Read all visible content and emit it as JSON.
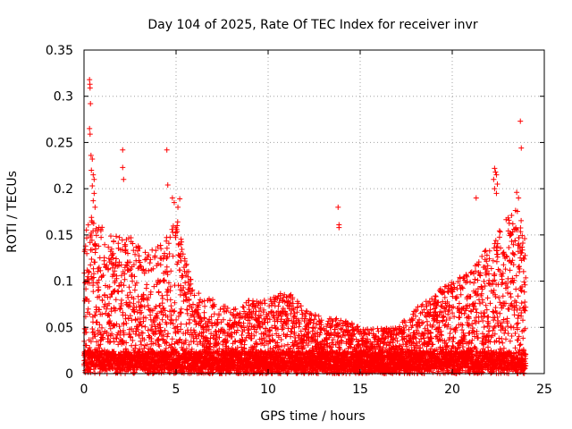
{
  "chart_data": {
    "type": "scatter",
    "title": "Day 104 of 2025, Rate Of TEC Index for receiver invr",
    "xlabel": "GPS time / hours",
    "ylabel": "ROTI / TECUs",
    "xlim": [
      0,
      25
    ],
    "ylim": [
      0,
      0.35
    ],
    "xticks": [
      "0",
      "5",
      "10",
      "15",
      "20",
      "25"
    ],
    "yticks": [
      "0",
      "0.05",
      "0.1",
      "0.15",
      "0.2",
      "0.25",
      "0.3",
      "0.35"
    ],
    "grid": true,
    "marker": "+",
    "series": [
      {
        "name": "ROTI",
        "color": "#ff0000",
        "envelope_hours": [
          0.0,
          0.25,
          0.5,
          1.0,
          1.5,
          2.0,
          2.5,
          3.0,
          3.5,
          4.0,
          4.5,
          5.0,
          5.5,
          6.0,
          7.0,
          8.0,
          9.0,
          10.0,
          11.0,
          12.0,
          13.0,
          14.0,
          15.0,
          16.0,
          17.0,
          18.0,
          19.0,
          20.0,
          21.0,
          22.0,
          23.0,
          23.5,
          24.0
        ],
        "envelope_values": [
          0.14,
          0.17,
          0.17,
          0.16,
          0.15,
          0.15,
          0.15,
          0.14,
          0.13,
          0.14,
          0.15,
          0.17,
          0.14,
          0.09,
          0.08,
          0.07,
          0.08,
          0.08,
          0.09,
          0.07,
          0.06,
          0.06,
          0.05,
          0.05,
          0.05,
          0.07,
          0.09,
          0.1,
          0.11,
          0.14,
          0.17,
          0.18,
          0.15
        ],
        "outliers": [
          [
            0.3,
            0.318
          ],
          [
            0.32,
            0.313
          ],
          [
            0.33,
            0.309
          ],
          [
            0.35,
            0.292
          ],
          [
            0.3,
            0.265
          ],
          [
            0.33,
            0.259
          ],
          [
            0.38,
            0.236
          ],
          [
            0.45,
            0.232
          ],
          [
            0.4,
            0.22
          ],
          [
            0.5,
            0.215
          ],
          [
            0.55,
            0.21
          ],
          [
            0.45,
            0.203
          ],
          [
            0.55,
            0.195
          ],
          [
            0.5,
            0.187
          ],
          [
            0.6,
            0.18
          ],
          [
            2.1,
            0.242
          ],
          [
            2.1,
            0.223
          ],
          [
            2.15,
            0.21
          ],
          [
            4.5,
            0.242
          ],
          [
            4.55,
            0.204
          ],
          [
            4.8,
            0.19
          ],
          [
            4.9,
            0.185
          ],
          [
            5.1,
            0.18
          ],
          [
            5.2,
            0.189
          ],
          [
            13.8,
            0.18
          ],
          [
            13.85,
            0.161
          ],
          [
            13.85,
            0.158
          ],
          [
            22.3,
            0.222
          ],
          [
            22.35,
            0.218
          ],
          [
            22.4,
            0.215
          ],
          [
            22.25,
            0.21
          ],
          [
            22.45,
            0.205
          ],
          [
            22.3,
            0.2
          ],
          [
            22.4,
            0.195
          ],
          [
            23.7,
            0.273
          ],
          [
            23.75,
            0.244
          ],
          [
            23.5,
            0.196
          ],
          [
            23.6,
            0.19
          ],
          [
            21.3,
            0.19
          ]
        ]
      }
    ]
  }
}
